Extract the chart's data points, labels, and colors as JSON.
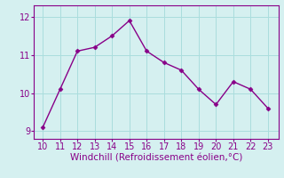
{
  "x": [
    10,
    11,
    12,
    13,
    14,
    15,
    16,
    17,
    18,
    19,
    20,
    21,
    22,
    23
  ],
  "y": [
    9.1,
    10.1,
    11.1,
    11.2,
    11.5,
    11.9,
    11.1,
    10.8,
    10.6,
    10.1,
    9.7,
    10.3,
    10.1,
    9.6
  ],
  "line_color": "#880088",
  "marker": "D",
  "marker_size": 2.5,
  "background_color": "#d5f0f0",
  "grid_color": "#aadddd",
  "xlabel": "Windchill (Refroidissement éolien,°C)",
  "xlabel_color": "#880088",
  "tick_color": "#880088",
  "spine_color": "#880088",
  "ylim": [
    8.8,
    12.3
  ],
  "xlim": [
    9.5,
    23.6
  ],
  "yticks": [
    9,
    10,
    11,
    12
  ],
  "xticks": [
    10,
    11,
    12,
    13,
    14,
    15,
    16,
    17,
    18,
    19,
    20,
    21,
    22,
    23
  ],
  "linewidth": 1.0,
  "xlabel_fontsize": 7.5,
  "tick_fontsize": 7.0
}
